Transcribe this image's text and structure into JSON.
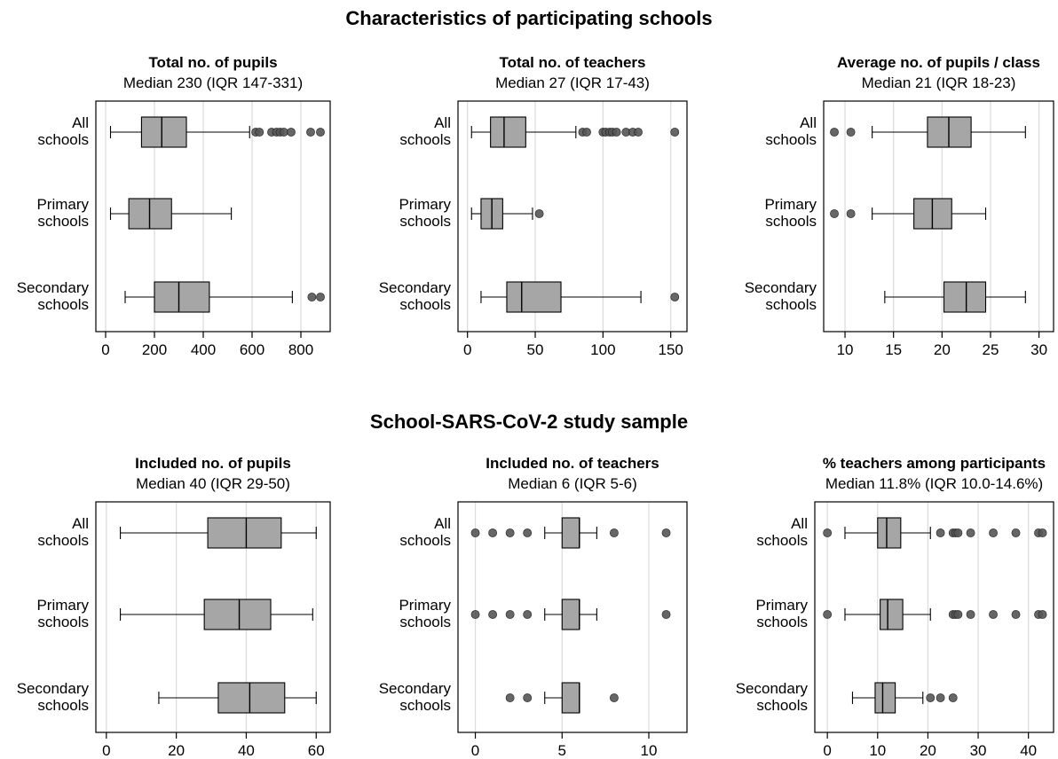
{
  "sections": [
    {
      "title": "Characteristics of participating schools"
    },
    {
      "title": "School-SARS-CoV-2 study sample"
    }
  ],
  "colors": {
    "box": "#a6a6a6",
    "outlier": "#555555",
    "outlier_dark": "#000000",
    "grid": "#dddddd",
    "frame": "#000000"
  },
  "chart_data": [
    {
      "type": "boxplot",
      "title": "Total no. of pupils",
      "subtitle": "Median 230 (IQR 147-331)",
      "categories": [
        "All\nschools",
        "Primary\nschools",
        "Secondary\nschools"
      ],
      "xlim": [
        -40,
        920
      ],
      "xticks": [
        0,
        200,
        400,
        600,
        800
      ],
      "boxes": [
        {
          "min": 20,
          "q1": 147,
          "median": 230,
          "q3": 331,
          "max": 590,
          "outliers": [
            615,
            630,
            680,
            700,
            715,
            730,
            760,
            840,
            880
          ]
        },
        {
          "min": 20,
          "q1": 95,
          "median": 180,
          "q3": 270,
          "max": 515,
          "outliers": []
        },
        {
          "min": 80,
          "q1": 200,
          "median": 300,
          "q3": 425,
          "max": 765,
          "outliers": [
            845,
            880
          ]
        }
      ]
    },
    {
      "type": "boxplot",
      "title": "Total no. of teachers",
      "subtitle": "Median 27 (IQR 17-43)",
      "categories": [
        "All\nschools",
        "Primary\nschools",
        "Secondary\nschools"
      ],
      "xlim": [
        -7,
        162
      ],
      "xticks": [
        0,
        50,
        100,
        150
      ],
      "boxes": [
        {
          "min": 3,
          "q1": 17,
          "median": 27,
          "q3": 43,
          "max": 80,
          "outliers": [
            85,
            88,
            100,
            102,
            105,
            107,
            110,
            117,
            122,
            126,
            153
          ]
        },
        {
          "min": 3,
          "q1": 10,
          "median": 18,
          "q3": 26,
          "max": 48,
          "outliers": [
            53
          ]
        },
        {
          "min": 10,
          "q1": 29,
          "median": 40,
          "q3": 69,
          "max": 128,
          "outliers": [
            153
          ]
        }
      ]
    },
    {
      "type": "boxplot",
      "title": "Average no. of pupils / class",
      "subtitle": "Median 21 (IQR 18-23)",
      "categories": [
        "All\nschools",
        "Primary\nschools",
        "Secondary\nschools"
      ],
      "xlim": [
        7.8,
        31.5
      ],
      "xticks": [
        10,
        15,
        20,
        25,
        30
      ],
      "boxes": [
        {
          "min": 12.8,
          "q1": 18.5,
          "median": 20.7,
          "q3": 23.0,
          "max": 28.6,
          "outliers": [
            8.9,
            10.6
          ]
        },
        {
          "min": 12.8,
          "q1": 17.1,
          "median": 19.0,
          "q3": 21.0,
          "max": 24.5,
          "outliers": [
            8.9,
            10.6
          ]
        },
        {
          "min": 14.1,
          "q1": 20.2,
          "median": 22.5,
          "q3": 24.5,
          "max": 28.6,
          "outliers": []
        }
      ]
    },
    {
      "type": "boxplot",
      "title": "Included no. of pupils",
      "subtitle": "Median 40 (IQR 29-50)",
      "categories": [
        "All\nschools",
        "Primary\nschools",
        "Secondary\nschools"
      ],
      "xlim": [
        -3,
        64
      ],
      "xticks": [
        0,
        20,
        40,
        60
      ],
      "boxes": [
        {
          "min": 4,
          "q1": 29,
          "median": 40,
          "q3": 50,
          "max": 60,
          "outliers": []
        },
        {
          "min": 4,
          "q1": 28,
          "median": 38,
          "q3": 47,
          "max": 59,
          "outliers": []
        },
        {
          "min": 15,
          "q1": 32,
          "median": 41,
          "q3": 51,
          "max": 60,
          "outliers": []
        }
      ]
    },
    {
      "type": "boxplot",
      "title": "Included no. of teachers",
      "subtitle": "Median 6 (IQR 5-6)",
      "categories": [
        "All\nschools",
        "Primary\nschools",
        "Secondary\nschools"
      ],
      "xlim": [
        -1,
        12.2
      ],
      "xticks": [
        0,
        5,
        10
      ],
      "boxes": [
        {
          "min": 4,
          "q1": 5,
          "median": 6,
          "q3": 6,
          "max": 7,
          "outliers": [
            0,
            1,
            2,
            3,
            8,
            11
          ]
        },
        {
          "min": 4,
          "q1": 5,
          "median": 6,
          "q3": 6,
          "max": 7,
          "outliers": [
            0,
            1,
            2,
            3,
            11
          ]
        },
        {
          "min": 4,
          "q1": 5,
          "median": 6,
          "q3": 6,
          "max": 6,
          "outliers": [
            2,
            3,
            8
          ]
        }
      ]
    },
    {
      "type": "boxplot",
      "title": "% teachers among participants",
      "subtitle": "Median 11.8% (IQR 10.0-14.6%)",
      "categories": [
        "All\nschools",
        "Primary\nschools",
        "Secondary\nschools"
      ],
      "xlim": [
        -2.5,
        45
      ],
      "xticks": [
        0,
        10,
        20,
        30,
        40
      ],
      "boxes": [
        {
          "min": 3.5,
          "q1": 10.0,
          "median": 11.8,
          "q3": 14.6,
          "max": 20.5,
          "outliers": [
            0,
            22.5,
            25,
            25.5,
            26,
            28.5,
            33,
            37.5,
            42,
            42.8
          ]
        },
        {
          "min": 3.5,
          "q1": 10.5,
          "median": 12.0,
          "q3": 15.0,
          "max": 20.5,
          "outliers": [
            0,
            25,
            25.5,
            26,
            28.5,
            33,
            37.5,
            42,
            42.8
          ]
        },
        {
          "min": 5.0,
          "q1": 9.5,
          "median": 11.0,
          "q3": 13.5,
          "max": 19.0,
          "outliers": [
            20.5,
            22.5,
            25
          ]
        }
      ]
    }
  ]
}
